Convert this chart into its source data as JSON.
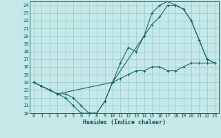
{
  "xlabel": "Humidex (Indice chaleur)",
  "background_color": "#c5e8e8",
  "grid_color": "#9ecece",
  "line_color": "#1a6868",
  "xlim": [
    -0.5,
    23.5
  ],
  "ylim": [
    10,
    24.5
  ],
  "yticks": [
    10,
    11,
    12,
    13,
    14,
    15,
    16,
    17,
    18,
    19,
    20,
    21,
    22,
    23,
    24
  ],
  "xticks": [
    0,
    1,
    2,
    3,
    4,
    5,
    6,
    7,
    8,
    9,
    10,
    11,
    12,
    13,
    14,
    15,
    16,
    17,
    18,
    19,
    20,
    21,
    22,
    23
  ],
  "line1_x": [
    0,
    1,
    2,
    3,
    4,
    5,
    6,
    7,
    8,
    9,
    10,
    11,
    12,
    13,
    14,
    15,
    16,
    17,
    18,
    19,
    20,
    21,
    22,
    23
  ],
  "line1_y": [
    14,
    13.5,
    13,
    12.5,
    12,
    11,
    10,
    10,
    10,
    11.5,
    14,
    14.5,
    15,
    15.5,
    15.5,
    16,
    16,
    15.5,
    15.5,
    16,
    16.5,
    16.5,
    16.5,
    16.5
  ],
  "line2_x": [
    0,
    1,
    2,
    3,
    4,
    5,
    6,
    7,
    8,
    9,
    10,
    11,
    12,
    13,
    14,
    15,
    16,
    17,
    18,
    19,
    20,
    21,
    22,
    23
  ],
  "line2_y": [
    14,
    13.5,
    13,
    12.5,
    12.5,
    12,
    11,
    10,
    10,
    11.5,
    14,
    16.5,
    18.5,
    18,
    20,
    21.5,
    22.5,
    24,
    24,
    23.5,
    22,
    19.5,
    17,
    16.5
  ],
  "line3_x": [
    0,
    2,
    3,
    10,
    14,
    15,
    16,
    17,
    18,
    19,
    20,
    22,
    23
  ],
  "line3_y": [
    14,
    13,
    12.5,
    14,
    20,
    23,
    24,
    24.5,
    24,
    23.5,
    22,
    17,
    16.5
  ],
  "tick_fontsize": 5.0,
  "xlabel_fontsize": 6.0,
  "linewidth": 0.8,
  "markersize": 3.0
}
